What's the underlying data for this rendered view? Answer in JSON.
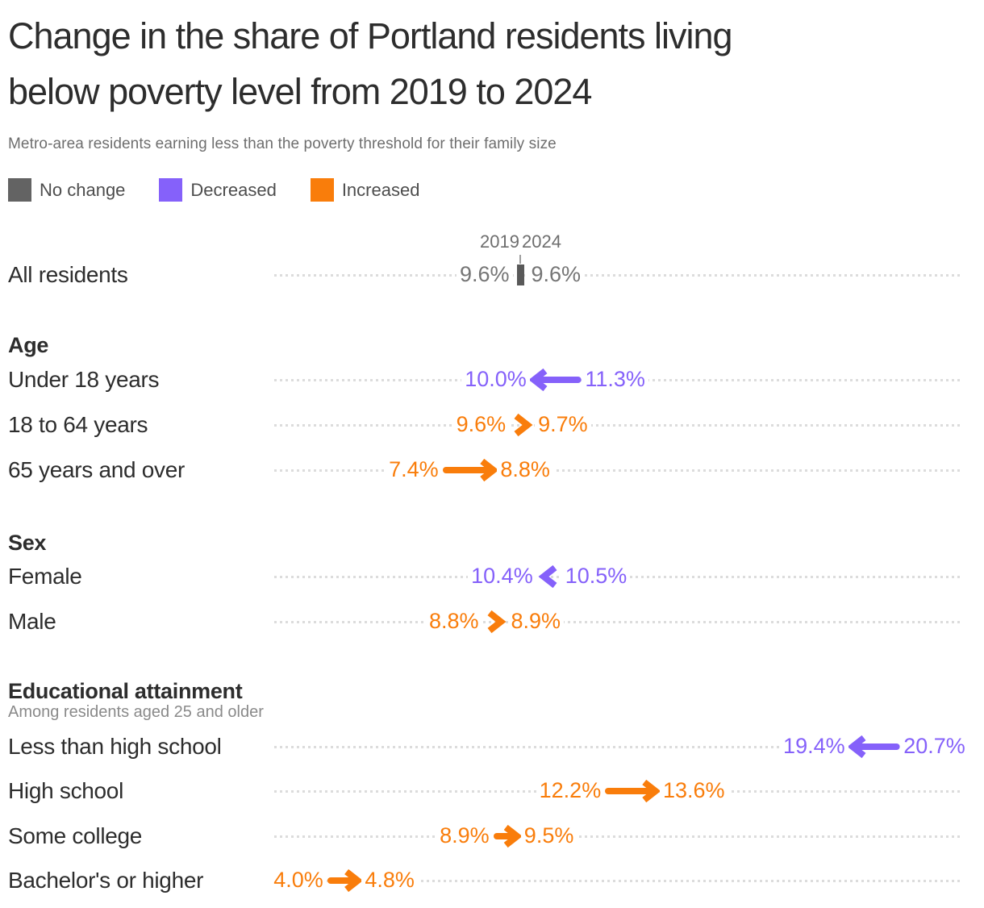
{
  "page": {
    "title_lines": [
      "Change in the share of Portland residents living",
      "below poverty level from 2019 to 2024"
    ],
    "subtitle": "Metro-area residents earning less than the poverty threshold for their family size"
  },
  "chart_data": {
    "type": "arrow",
    "title": "Change in the share of Portland residents living below poverty level from 2019 to 2024",
    "subtitle": "Metro-area residents earning less than the poverty threshold for their family size",
    "unit": "%",
    "years": {
      "start": "2019",
      "end": "2024"
    },
    "legend": [
      {
        "key": "no_change",
        "label": "No change"
      },
      {
        "key": "decreased",
        "label": "Decreased"
      },
      {
        "key": "increased",
        "label": "Increased"
      }
    ],
    "colors": {
      "no_change": "#636363",
      "decreased": "#8561fa",
      "increased": "#f97d0b",
      "no_change_text": "#757575"
    },
    "layout_hints": {
      "value_axis": "horizontal",
      "grid": "dotted-row-leaders",
      "legend_position": "top-left"
    },
    "groups": [
      {
        "header": "",
        "note": "",
        "rows": [
          {
            "label": "All residents",
            "v2019": 9.6,
            "v2024": 9.6,
            "change": "no_change"
          }
        ]
      },
      {
        "header": "Age",
        "note": "",
        "rows": [
          {
            "label": "Under 18 years",
            "v2019": 11.3,
            "v2024": 10.0,
            "change": "decreased"
          },
          {
            "label": "18 to 64 years",
            "v2019": 9.6,
            "v2024": 9.7,
            "change": "increased"
          },
          {
            "label": "65 years and over",
            "v2019": 7.4,
            "v2024": 8.8,
            "change": "increased"
          }
        ]
      },
      {
        "header": "Sex",
        "note": "",
        "rows": [
          {
            "label": "Female",
            "v2019": 10.5,
            "v2024": 10.4,
            "change": "decreased"
          },
          {
            "label": "Male",
            "v2019": 8.8,
            "v2024": 8.9,
            "change": "increased"
          }
        ]
      },
      {
        "header": "Educational attainment",
        "note": "Among residents aged 25 and older",
        "rows": [
          {
            "label": "Less than high school",
            "v2019": 20.7,
            "v2024": 19.4,
            "change": "decreased"
          },
          {
            "label": "High school",
            "v2019": 12.2,
            "v2024": 13.6,
            "change": "increased"
          },
          {
            "label": "Some college",
            "v2019": 8.9,
            "v2024": 9.5,
            "change": "increased"
          },
          {
            "label": "Bachelor's or higher",
            "v2019": 4.0,
            "v2024": 4.8,
            "change": "increased"
          }
        ]
      }
    ]
  }
}
